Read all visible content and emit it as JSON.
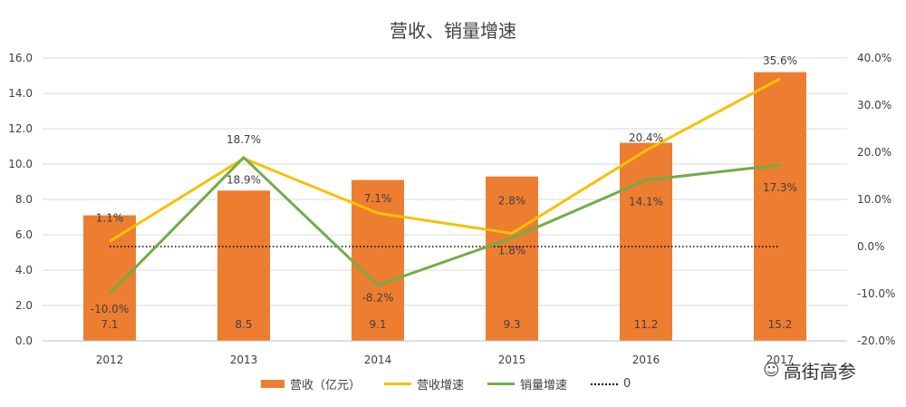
{
  "chart_data": {
    "type": "bar+line",
    "title": "营收、销量增速",
    "categories": [
      "2012",
      "2013",
      "2014",
      "2015",
      "2016",
      "2017"
    ],
    "bar_series": {
      "name": "营收（亿元）",
      "values": [
        7.1,
        8.5,
        9.1,
        9.3,
        11.2,
        15.2
      ],
      "color": "#ED7D31"
    },
    "line_series": [
      {
        "name": "营收增速",
        "values": [
          1.1,
          18.7,
          7.1,
          2.8,
          20.4,
          35.6
        ],
        "labels": [
          "1.1%",
          "18.7%",
          "7.1%",
          "2.8%",
          "20.4%",
          "35.6%"
        ],
        "color": "#F5C200"
      },
      {
        "name": "销量增速",
        "values": [
          -10.0,
          18.9,
          -8.2,
          1.8,
          14.1,
          17.3
        ],
        "labels": [
          "-10.0%",
          "18.9%",
          "-8.2%",
          "1.8%",
          "14.1%",
          "17.3%"
        ],
        "color": "#70AD47"
      }
    ],
    "reference_line": {
      "name": "0",
      "value": 0,
      "style": "dotted",
      "color": "#000000"
    },
    "y_left": {
      "ylim": [
        0,
        16
      ],
      "ticks": [
        "0.0",
        "2.0",
        "4.0",
        "6.0",
        "8.0",
        "10.0",
        "12.0",
        "14.0",
        "16.0"
      ]
    },
    "y_right": {
      "ylim": [
        -20,
        40
      ],
      "ticks": [
        "-20.0%",
        "-10.0%",
        "0.0%",
        "10.0%",
        "20.0%",
        "30.0%",
        "40.0%"
      ]
    },
    "grid": true,
    "legend_position": "bottom"
  },
  "watermark": {
    "text": "高街高参",
    "icon": "wechat-icon"
  }
}
